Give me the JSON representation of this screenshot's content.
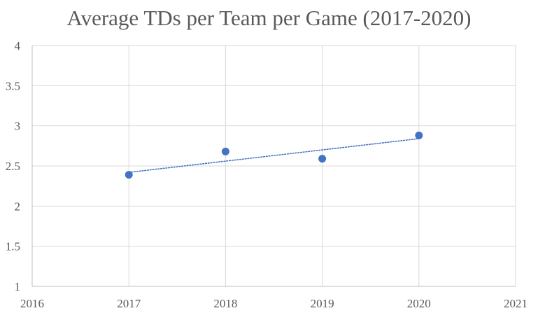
{
  "chart_data": {
    "type": "scatter",
    "title": "Average TDs per Team per Game (2017-2020)",
    "xlabel": "",
    "ylabel": "",
    "xlim": [
      2016,
      2021
    ],
    "ylim": [
      1,
      4
    ],
    "x_ticks": [
      "2016",
      "2017",
      "2018",
      "2019",
      "2020",
      "2021"
    ],
    "y_ticks": [
      "1",
      "1.5",
      "2",
      "2.5",
      "3",
      "3.5",
      "4"
    ],
    "grid": true,
    "legend": "none",
    "series": [
      {
        "x": [
          2017,
          2018,
          2019,
          2020
        ],
        "y": [
          2.39,
          2.68,
          2.59,
          2.88
        ],
        "color": "#4472c4"
      }
    ],
    "trendline": {
      "type": "linear",
      "style": "dotted",
      "color": "#4472c4",
      "x": [
        2017,
        2020
      ],
      "y": [
        2.42,
        2.84
      ]
    }
  }
}
